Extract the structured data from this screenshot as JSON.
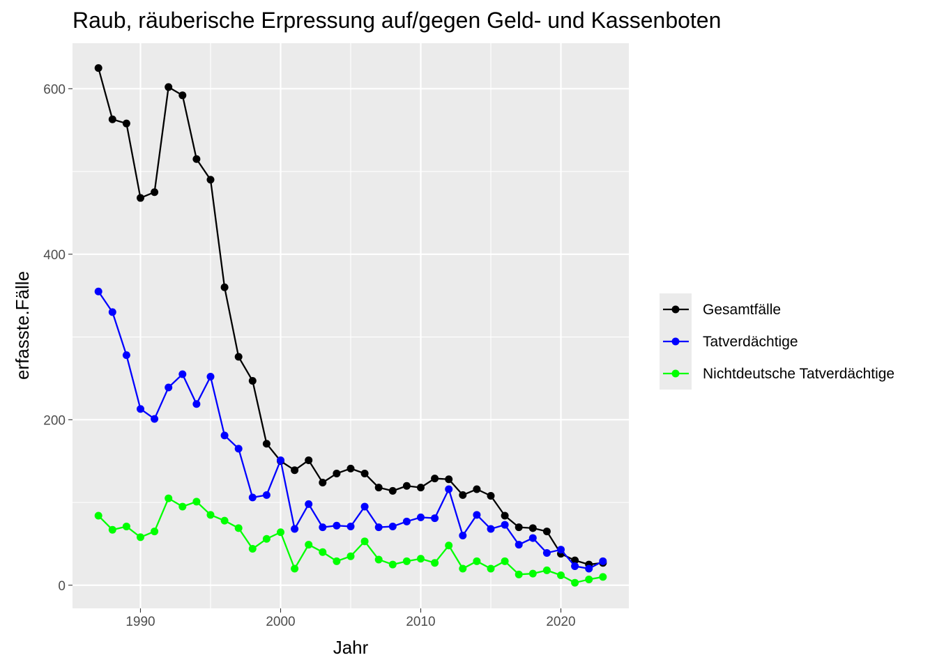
{
  "chart_data": {
    "type": "line",
    "title": "Raub, räuberische Erpressung auf/gegen Geld- und Kassenboten",
    "xlabel": "Jahr",
    "ylabel": "erfasste.Fälle",
    "xlim": [
      1985.15,
      2024.85
    ],
    "ylim": [
      -28,
      655
    ],
    "x_ticks": [
      1990,
      2000,
      2010,
      2020
    ],
    "y_ticks": [
      0,
      200,
      400,
      600
    ],
    "x_minor": [
      1995,
      2005,
      2015
    ],
    "y_minor": [
      100,
      300,
      500
    ],
    "grid": true,
    "legend_position": "right",
    "panel_background": "#ebebeb",
    "x": [
      1987,
      1988,
      1989,
      1990,
      1991,
      1992,
      1993,
      1994,
      1995,
      1996,
      1997,
      1998,
      1999,
      2000,
      2001,
      2002,
      2003,
      2004,
      2005,
      2006,
      2007,
      2008,
      2009,
      2010,
      2011,
      2012,
      2013,
      2014,
      2015,
      2016,
      2017,
      2018,
      2019,
      2020,
      2021,
      2022,
      2023
    ],
    "series": [
      {
        "name": "Gesamtfälle",
        "color": "#000000",
        "values": [
          625,
          563,
          558,
          468,
          475,
          602,
          592,
          515,
          490,
          360,
          276,
          247,
          171,
          150,
          139,
          151,
          124,
          135,
          141,
          135,
          118,
          114,
          120,
          118,
          129,
          128,
          109,
          116,
          108,
          84,
          70,
          69,
          65,
          38,
          30,
          25,
          27
        ]
      },
      {
        "name": "Tatverdächtige",
        "color": "#0000ff",
        "values": [
          355,
          330,
          278,
          213,
          201,
          239,
          255,
          219,
          252,
          181,
          165,
          106,
          109,
          151,
          68,
          98,
          70,
          72,
          71,
          95,
          70,
          71,
          77,
          82,
          81,
          116,
          60,
          85,
          68,
          73,
          49,
          57,
          39,
          43,
          23,
          20,
          29
        ]
      },
      {
        "name": "Nichtdeutsche Tatverdächtige",
        "color": "#00ff00",
        "values": [
          84,
          67,
          71,
          58,
          65,
          105,
          95,
          101,
          85,
          78,
          69,
          44,
          56,
          64,
          20,
          49,
          40,
          29,
          35,
          53,
          31,
          25,
          29,
          32,
          27,
          48,
          20,
          29,
          20,
          29,
          13,
          14,
          18,
          12,
          3,
          7,
          10
        ]
      }
    ]
  }
}
